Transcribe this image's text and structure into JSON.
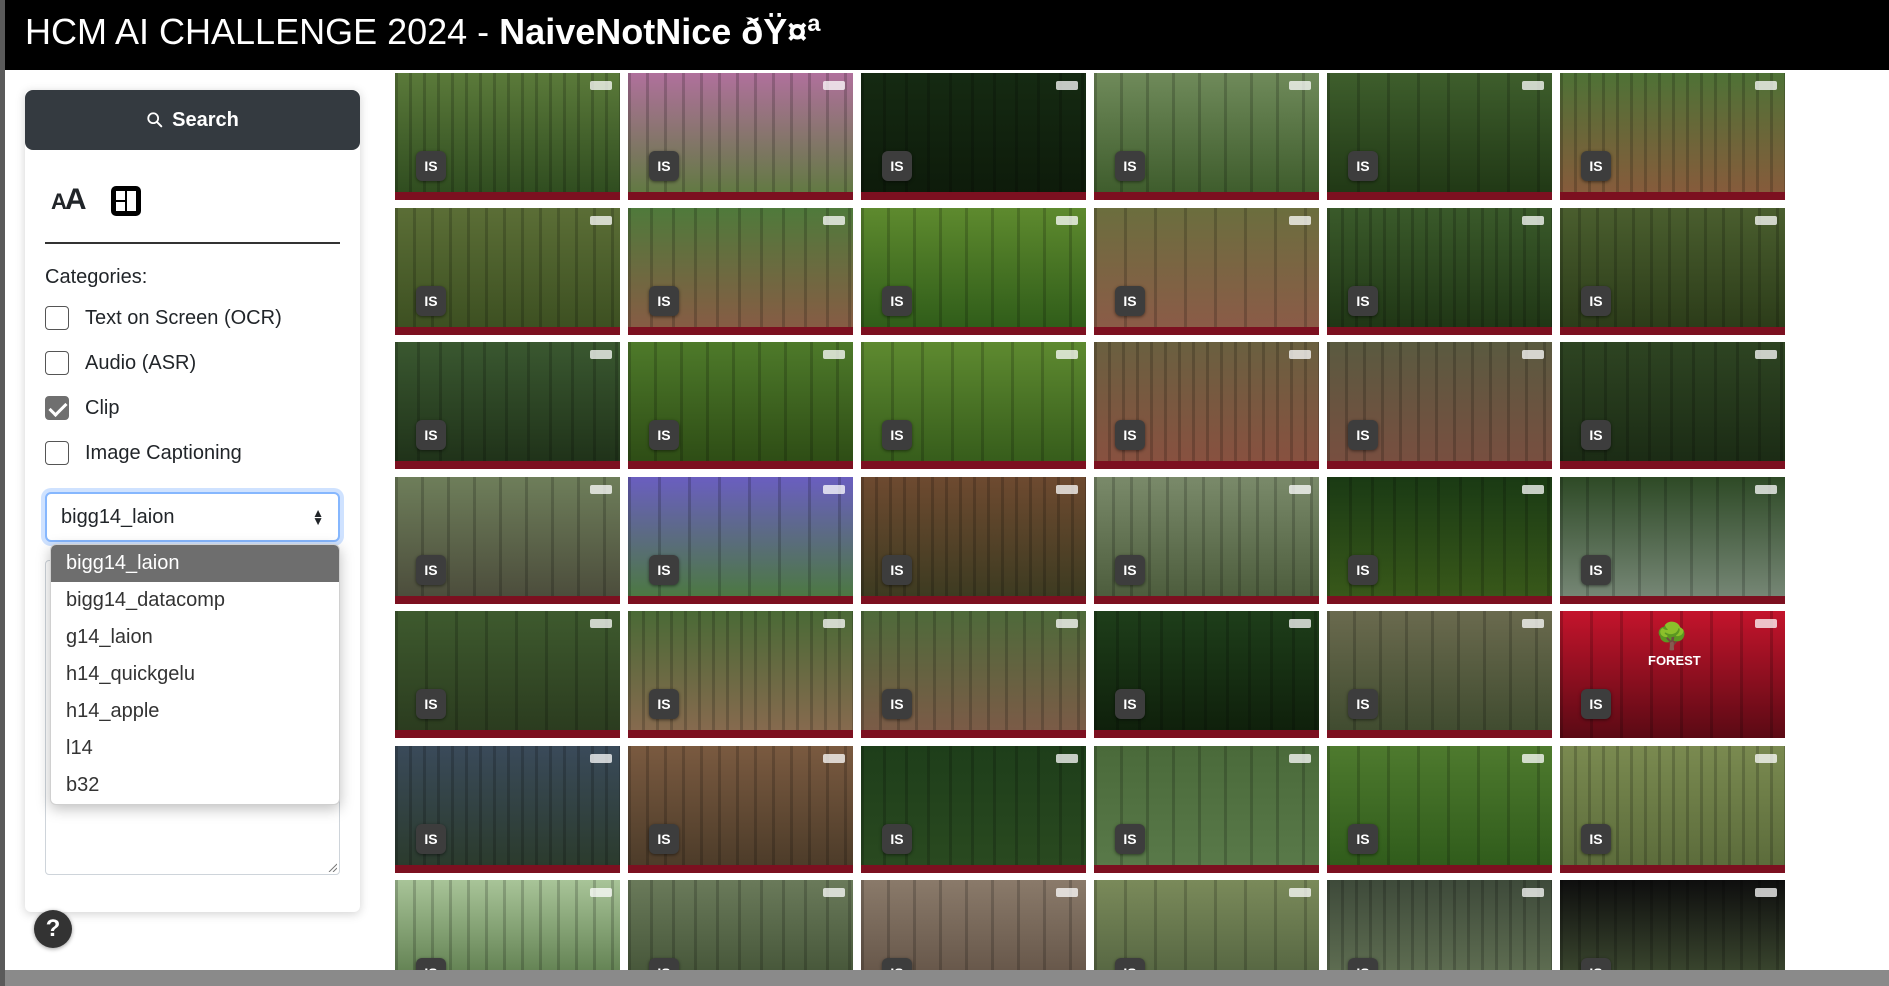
{
  "header": {
    "title_prefix": "HCM AI CHALLENGE 2024 - ",
    "title_team": "NaiveNotNice ðŸ¤ª"
  },
  "sidebar": {
    "search_label": "Search",
    "mode_text_icon": "text-size-icon",
    "mode_grid_icon": "layout-icon",
    "categories_label": "Categories:",
    "categories": [
      {
        "label": "Text on Screen (OCR)",
        "checked": false
      },
      {
        "label": "Audio (ASR)",
        "checked": false
      },
      {
        "label": "Clip",
        "checked": true
      },
      {
        "label": "Image Captioning",
        "checked": false
      }
    ],
    "model_select": {
      "value": "bigg14_laion",
      "options": [
        "bigg14_laion",
        "bigg14_datacomp",
        "g14_laion",
        "h14_quickgelu",
        "h14_apple",
        "l14",
        "b32"
      ]
    },
    "query_text": "",
    "help_label": "?"
  },
  "results": {
    "badge_label": "IS",
    "forest_crest_text": "FOREST",
    "thumbnails": [
      {
        "theme": [
          "#5b7a3a",
          "#2d4a1e"
        ]
      },
      {
        "theme": [
          "#b0709c",
          "#5d7a3d"
        ]
      },
      {
        "theme": [
          "#152a12",
          "#0d1a0a"
        ]
      },
      {
        "theme": [
          "#6f8a5a",
          "#3c5a2a"
        ]
      },
      {
        "theme": [
          "#3e5e2c",
          "#1f3614"
        ]
      },
      {
        "theme": [
          "#4e7236",
          "#8a5a3c"
        ]
      },
      {
        "theme": [
          "#5b6e36",
          "#3b4e20"
        ]
      },
      {
        "theme": [
          "#4f7a3b",
          "#8a5a45"
        ]
      },
      {
        "theme": [
          "#5e8a2e",
          "#2d5a18"
        ]
      },
      {
        "theme": [
          "#6b6e3e",
          "#8d5a48"
        ]
      },
      {
        "theme": [
          "#3a5a2a",
          "#1e3414"
        ]
      },
      {
        "theme": [
          "#4a5e2e",
          "#2a3a18"
        ]
      },
      {
        "theme": [
          "#3a5830",
          "#1e3018"
        ]
      },
      {
        "theme": [
          "#4e7a2a",
          "#2c4a14"
        ]
      },
      {
        "theme": [
          "#5e8a30",
          "#345a1a"
        ]
      },
      {
        "theme": [
          "#6a6040",
          "#8a5040"
        ]
      },
      {
        "theme": [
          "#5a5a40",
          "#7a4e40"
        ]
      },
      {
        "theme": [
          "#2e4422",
          "#1a2a14"
        ]
      },
      {
        "theme": [
          "#6e7e5a",
          "#4a4a3a"
        ]
      },
      {
        "theme": [
          "#6a5ec0",
          "#4a7a3a"
        ]
      },
      {
        "theme": [
          "#6e4a30",
          "#3a3a20"
        ]
      },
      {
        "theme": [
          "#7a8a6a",
          "#4a5a3a"
        ]
      },
      {
        "theme": [
          "#1a3a14",
          "#3a5a1a"
        ]
      },
      {
        "theme": [
          "#2e4a26",
          "#7a8a7a"
        ]
      },
      {
        "theme": [
          "#3e5a2e",
          "#2a3a1e"
        ]
      },
      {
        "theme": [
          "#4a6a36",
          "#8a6a50"
        ]
      },
      {
        "theme": [
          "#4e6a3a",
          "#7e5a48"
        ]
      },
      {
        "theme": [
          "#1e3e1a",
          "#0e1e0a"
        ]
      },
      {
        "theme": [
          "#6a6a4e",
          "#3e4a2e"
        ]
      },
      {
        "theme": [
          "#c4142c",
          "#5a0a14"
        ]
      },
      {
        "theme": [
          "#3a4a5a",
          "#2a3a2a"
        ]
      },
      {
        "theme": [
          "#7a5a40",
          "#4a3a28"
        ]
      },
      {
        "theme": [
          "#1e3e1a",
          "#2a4a20"
        ]
      },
      {
        "theme": [
          "#4a6a3a",
          "#5a7a4a"
        ]
      },
      {
        "theme": [
          "#4e7a2e",
          "#2e5a1a"
        ]
      },
      {
        "theme": [
          "#7a8a50",
          "#5a6a3a"
        ]
      },
      {
        "theme": [
          "#a8c498",
          "#4a6a3a"
        ]
      },
      {
        "theme": [
          "#6a7a5a",
          "#3a4a2e"
        ]
      },
      {
        "theme": [
          "#8a7a6a",
          "#5a4a3e"
        ]
      },
      {
        "theme": [
          "#7a8a5a",
          "#4a5a3a"
        ]
      },
      {
        "theme": [
          "#3e4a3a",
          "#6a7a5a"
        ]
      },
      {
        "theme": [
          "#0e0e0e",
          "#4a5a3a"
        ]
      }
    ]
  },
  "colors": {
    "header_bg": "#000000",
    "search_bg": "#343a40",
    "select_focus": "#86b7fe",
    "dropdown_selected": "#6e6e6e",
    "badge_bg": "#3d3d3d"
  }
}
